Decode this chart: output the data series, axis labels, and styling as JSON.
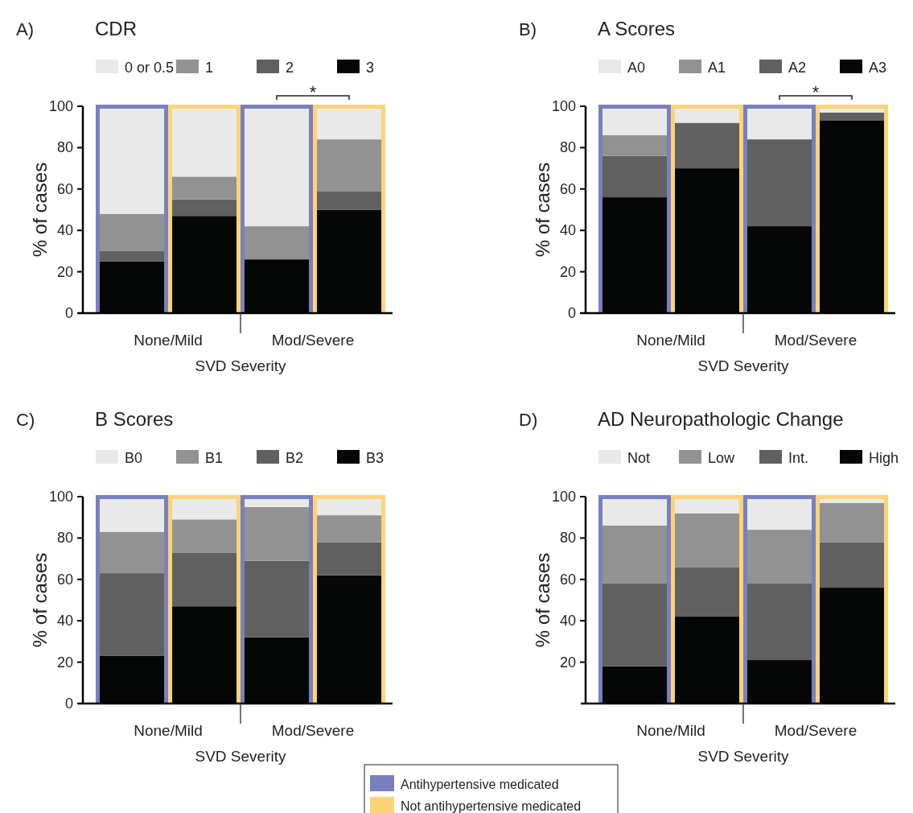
{
  "chart_data": [
    {
      "type": "bar",
      "stacked": true,
      "title": "CDR",
      "xlabel": "SVD Severity",
      "ylabel": "% of cases",
      "categories": [
        null,
        null,
        null,
        null
      ],
      "ylim": [
        0,
        100
      ],
      "yticks": [
        0,
        20,
        40,
        60,
        80,
        100
      ],
      "legend": "top",
      "annotations": [
        "A)",
        "None/Mild",
        "Mod/Severe",
        "*"
      ],
      "series": [
        {
          "name": "3",
          "color": "#050606",
          "values": [
            25,
            47,
            26,
            50
          ]
        },
        {
          "name": "2",
          "color": "#606060",
          "values": [
            5,
            8,
            0,
            9
          ]
        },
        {
          "name": "1",
          "color": "#929292",
          "values": [
            18,
            11,
            16,
            25
          ]
        },
        {
          "name": "0 or 0.5",
          "color": "#e8e9e8",
          "values": [
            52,
            34,
            58,
            16
          ]
        }
      ]
    },
    {
      "type": "bar",
      "stacked": true,
      "title": "A Scores",
      "xlabel": "SVD Severity",
      "ylabel": "% of cases",
      "categories": [
        null,
        null,
        null,
        null
      ],
      "ylim": [
        0,
        100
      ],
      "yticks": [
        0,
        20,
        40,
        60,
        80,
        100
      ],
      "legend": "top",
      "annotations": [
        "B)",
        "None/Mild",
        "Mod/Severe",
        "*"
      ],
      "series": [
        {
          "name": "A3",
          "color": "#050606",
          "values": [
            56,
            70,
            42,
            93
          ]
        },
        {
          "name": "A2",
          "color": "#606060",
          "values": [
            20,
            22,
            42,
            4
          ]
        },
        {
          "name": "A1",
          "color": "#929292",
          "values": [
            10,
            0,
            0,
            0
          ]
        },
        {
          "name": "A0",
          "color": "#e8e9e8",
          "values": [
            14,
            8,
            16,
            3
          ]
        }
      ]
    },
    {
      "type": "bar",
      "stacked": true,
      "title": "B Scores",
      "xlabel": "SVD Severity",
      "ylabel": "% of cases",
      "categories": [
        null,
        null,
        null,
        null
      ],
      "ylim": [
        0,
        100
      ],
      "yticks": [
        0,
        20,
        40,
        60,
        80,
        100
      ],
      "legend": "top",
      "annotations": [
        "C)",
        "None/Mild",
        "Mod/Severe"
      ],
      "series": [
        {
          "name": "B3",
          "color": "#050606",
          "values": [
            23,
            47,
            32,
            62
          ]
        },
        {
          "name": "B2",
          "color": "#606060",
          "values": [
            40,
            26,
            37,
            16
          ]
        },
        {
          "name": "B1",
          "color": "#929292",
          "values": [
            20,
            16,
            26,
            13
          ]
        },
        {
          "name": "B0",
          "color": "#e8e9e8",
          "values": [
            17,
            11,
            5,
            9
          ]
        }
      ]
    },
    {
      "type": "bar",
      "stacked": true,
      "title": "AD Neuropathologic Change",
      "xlabel": "SVD Severity",
      "ylabel": "% of cases",
      "categories": [
        null,
        null,
        null,
        null
      ],
      "ylim": [
        0,
        100
      ],
      "yticks": [
        20,
        40,
        60,
        80,
        100
      ],
      "legend": "top",
      "annotations": [
        "D)",
        "None/Mild",
        "Mod/Severe"
      ],
      "series": [
        {
          "name": "High",
          "color": "#050606",
          "values": [
            18,
            42,
            21,
            56
          ]
        },
        {
          "name": "Int.",
          "color": "#606060",
          "values": [
            40,
            24,
            37,
            22
          ]
        },
        {
          "name": "Low",
          "color": "#929292",
          "values": [
            28,
            26,
            26,
            19
          ]
        },
        {
          "name": "Not",
          "color": "#e8e9e8",
          "values": [
            14,
            8,
            16,
            3
          ]
        }
      ]
    },
    {
      "type": "other",
      "categories": [
        "Antihypertensive medicated",
        "Not antihypertensive medicated"
      ],
      "colors": [
        "#7a7fbf",
        "#fcd475"
      ]
    }
  ]
}
